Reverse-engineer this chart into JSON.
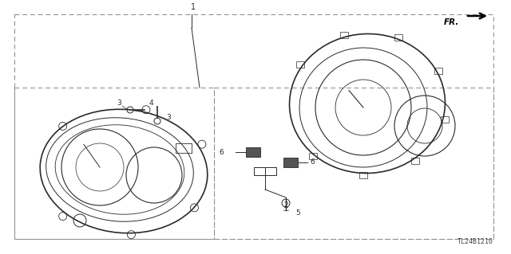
{
  "bg_color": "#ffffff",
  "line_color": "#2a2a2a",
  "diagram_code": "TL24B1210",
  "fr_label": "FR.",
  "figsize": [
    6.4,
    3.19
  ],
  "dpi": 100
}
